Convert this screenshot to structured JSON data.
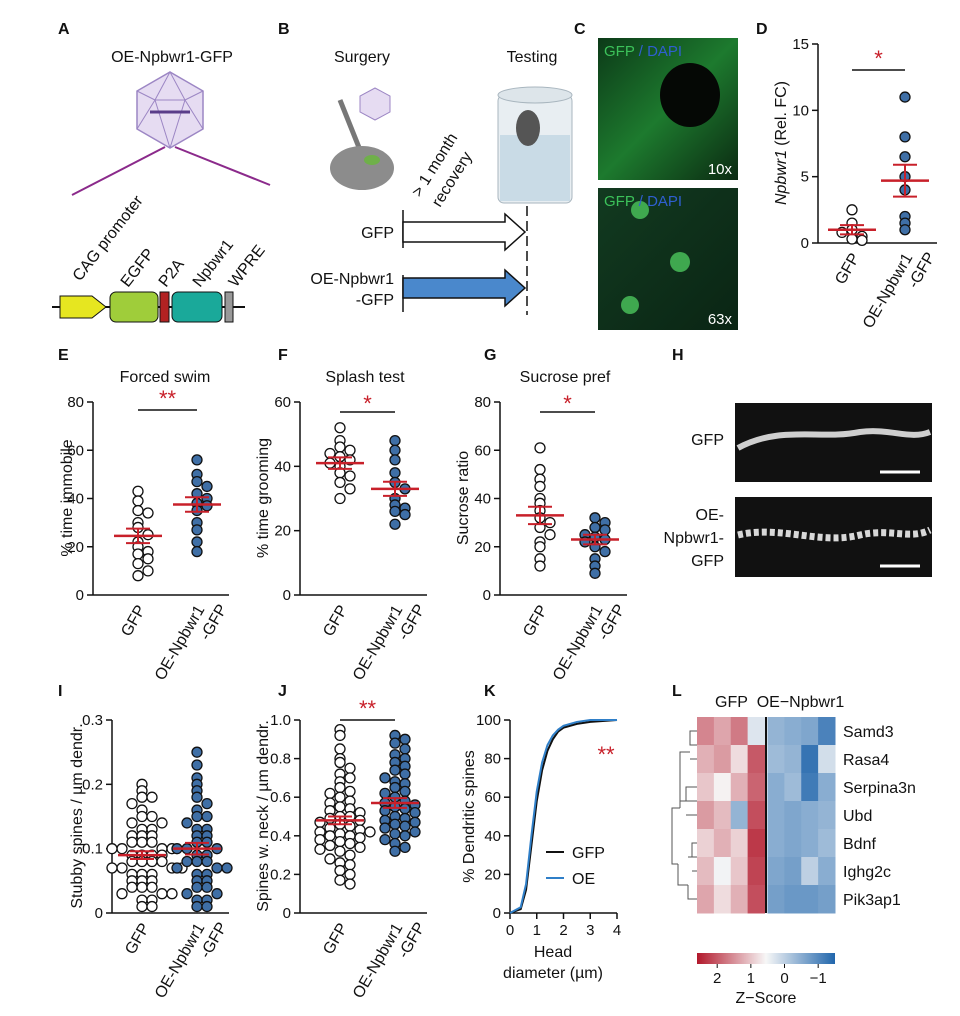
{
  "panel_letters": [
    "A",
    "B",
    "C",
    "D",
    "E",
    "F",
    "G",
    "H",
    "I",
    "J",
    "K",
    "L"
  ],
  "panel_a": {
    "title": "OE-Npbwr1-GFP",
    "elements": [
      "CAG promoter",
      "EGFP",
      "P2A",
      "Npbwr1",
      "WPRE"
    ]
  },
  "panel_b": {
    "surgery": "Surgery",
    "testing": "Testing",
    "recovery": [
      "> 1 month",
      "recovery"
    ],
    "group_gfp": "GFP",
    "group_oe": [
      "OE-Npbwr1",
      "-GFP"
    ]
  },
  "panel_c": {
    "stain": [
      "GFP",
      "/ DAPI"
    ],
    "magnifications": [
      "10x",
      "63x"
    ]
  },
  "panel_h": {
    "labels": [
      "GFP",
      [
        "OE-",
        "Npbwr1-",
        "GFP"
      ]
    ]
  },
  "chart_data": [
    {
      "type": "strip",
      "ylabel_gene": "Npbwr1",
      "ylabel": "(Rel. FC)",
      "categories": [
        "GFP",
        [
          "OE-Npbwr1",
          "-GFP"
        ]
      ],
      "mean_color": "#c8202a",
      "significance": "*",
      "ylim": [
        0,
        15
      ],
      "yticks": [
        0,
        5,
        10,
        15
      ],
      "groups": [
        {
          "color": "#ffffff",
          "values": [
            2.5,
            1.5,
            1.0,
            0.5,
            0.3,
            0.8,
            0.2
          ],
          "mean": 1.0,
          "sem": 0.35
        },
        {
          "color": "#3f6fa6",
          "values": [
            11,
            8,
            6.5,
            5,
            4,
            2,
            1.5,
            1.0
          ],
          "mean": 4.7,
          "sem": 1.2
        }
      ]
    },
    {
      "type": "strip",
      "title": "Forced swim",
      "ylabel": "% time immobile",
      "categories": [
        "GFP",
        [
          "OE-Npbwr1",
          "-GFP"
        ]
      ],
      "mean_color": "#c8202a",
      "significance": "**",
      "ylim": [
        0,
        80
      ],
      "yticks": [
        0,
        20,
        40,
        60,
        80
      ],
      "groups": [
        {
          "color": "#ffffff",
          "values": [
            43,
            39,
            35,
            34,
            30,
            28,
            25,
            22,
            20,
            18,
            17,
            15,
            13,
            10,
            8
          ],
          "mean": 24.5,
          "sem": 3
        },
        {
          "color": "#3f6fa6",
          "values": [
            56,
            50,
            47,
            45,
            42,
            40,
            38,
            37,
            35,
            30,
            27,
            22,
            18
          ],
          "mean": 37.5,
          "sem": 3
        }
      ]
    },
    {
      "type": "strip",
      "title": "Splash test",
      "ylabel": "% time grooming",
      "categories": [
        "GFP",
        [
          "OE-Npbwr1",
          "-GFP"
        ]
      ],
      "mean_color": "#c8202a",
      "significance": "*",
      "ylim": [
        0,
        60
      ],
      "yticks": [
        0,
        20,
        40,
        60
      ],
      "groups": [
        {
          "color": "#ffffff",
          "values": [
            52,
            48,
            46,
            45,
            44,
            43,
            42,
            41,
            40,
            38,
            37,
            35,
            33,
            30
          ],
          "mean": 41,
          "sem": 1.8
        },
        {
          "color": "#3f6fa6",
          "values": [
            48,
            45,
            42,
            38,
            35,
            33,
            30,
            28,
            27,
            26,
            25,
            22
          ],
          "mean": 33,
          "sem": 2.2
        }
      ]
    },
    {
      "type": "strip",
      "title": "Sucrose pref",
      "ylabel": "Sucrose ratio",
      "categories": [
        "GFP",
        [
          "OE-Npbwr1",
          "-GFP"
        ]
      ],
      "mean_color": "#c8202a",
      "significance": "*",
      "ylim": [
        0,
        80
      ],
      "yticks": [
        0,
        20,
        40,
        60,
        80
      ],
      "groups": [
        {
          "color": "#ffffff",
          "values": [
            61,
            52,
            48,
            45,
            40,
            38,
            35,
            32,
            30,
            28,
            25,
            22,
            20,
            15,
            12
          ],
          "mean": 33,
          "sem": 3.6
        },
        {
          "color": "#3f6fa6",
          "values": [
            32,
            30,
            28,
            27,
            25,
            24,
            23,
            22,
            20,
            18,
            15,
            12,
            9
          ],
          "mean": 23,
          "sem": 2
        }
      ]
    },
    {
      "type": "strip",
      "ylabel": "Stubby spines / µm dendr.",
      "categories": [
        "GFP",
        [
          "OE-Npbwr1",
          "-GFP"
        ]
      ],
      "mean_color": "#c8202a",
      "ylim": [
        0,
        0.3
      ],
      "yticks": [
        0,
        0.1,
        0.2,
        0.3
      ],
      "groups": [
        {
          "color": "#ffffff",
          "values": [
            0.2,
            0.19,
            0.18,
            0.18,
            0.17,
            0.16,
            0.15,
            0.15,
            0.14,
            0.14,
            0.13,
            0.13,
            0.12,
            0.12,
            0.12,
            0.11,
            0.11,
            0.11,
            0.1,
            0.1,
            0.1,
            0.1,
            0.09,
            0.09,
            0.09,
            0.09,
            0.08,
            0.08,
            0.08,
            0.08,
            0.07,
            0.07,
            0.07,
            0.07,
            0.06,
            0.06,
            0.06,
            0.05,
            0.05,
            0.05,
            0.04,
            0.04,
            0.04,
            0.03,
            0.03,
            0.03,
            0.02,
            0.02,
            0.01,
            0.01
          ],
          "mean": 0.09,
          "sem": 0.006
        },
        {
          "color": "#3f6fa6",
          "values": [
            0.25,
            0.23,
            0.21,
            0.2,
            0.19,
            0.18,
            0.17,
            0.16,
            0.15,
            0.15,
            0.14,
            0.13,
            0.13,
            0.12,
            0.12,
            0.11,
            0.11,
            0.1,
            0.1,
            0.1,
            0.09,
            0.09,
            0.08,
            0.08,
            0.08,
            0.07,
            0.07,
            0.07,
            0.06,
            0.06,
            0.05,
            0.05,
            0.04,
            0.04,
            0.03,
            0.03,
            0.02,
            0.02,
            0.01,
            0.01
          ],
          "mean": 0.1,
          "sem": 0.009
        }
      ]
    },
    {
      "type": "strip",
      "ylabel": "Spines w. neck / µm dendr.",
      "categories": [
        "GFP",
        [
          "OE-Npbwr1",
          "-GFP"
        ]
      ],
      "mean_color": "#c8202a",
      "significance": "**",
      "ylim": [
        0,
        1
      ],
      "yticks": [
        0,
        0.2,
        0.4,
        0.6,
        0.8,
        {
          "value": 1,
          "label": "1.0"
        }
      ],
      "groups": [
        {
          "color": "#ffffff",
          "values": [
            0.95,
            0.92,
            0.85,
            0.8,
            0.78,
            0.75,
            0.72,
            0.7,
            0.68,
            0.65,
            0.63,
            0.62,
            0.6,
            0.58,
            0.57,
            0.55,
            0.54,
            0.53,
            0.52,
            0.5,
            0.5,
            0.49,
            0.48,
            0.47,
            0.46,
            0.45,
            0.44,
            0.43,
            0.42,
            0.42,
            0.41,
            0.4,
            0.4,
            0.39,
            0.38,
            0.37,
            0.36,
            0.35,
            0.34,
            0.33,
            0.32,
            0.3,
            0.28,
            0.26,
            0.25,
            0.22,
            0.2,
            0.17,
            0.15
          ],
          "mean": 0.48,
          "sem": 0.02
        },
        {
          "color": "#3f6fa6",
          "values": [
            0.92,
            0.9,
            0.88,
            0.85,
            0.82,
            0.8,
            0.78,
            0.76,
            0.74,
            0.72,
            0.7,
            0.68,
            0.67,
            0.65,
            0.63,
            0.62,
            0.6,
            0.58,
            0.57,
            0.56,
            0.55,
            0.54,
            0.53,
            0.52,
            0.5,
            0.49,
            0.48,
            0.47,
            0.46,
            0.45,
            0.44,
            0.42,
            0.41,
            0.4,
            0.38,
            0.36,
            0.34,
            0.32
          ],
          "mean": 0.57,
          "sem": 0.025
        }
      ]
    },
    {
      "type": "line",
      "ylabel": "% Dendritic spines",
      "xlabel": [
        "Head",
        "diameter (µm)"
      ],
      "significance": "**",
      "xlim": [
        0,
        4
      ],
      "xticks": [
        0,
        1,
        2,
        3,
        4
      ],
      "ylim": [
        0,
        100
      ],
      "yticks": [
        0,
        20,
        40,
        60,
        80,
        100
      ],
      "x": [
        0,
        0.4,
        0.6,
        0.8,
        1.0,
        1.2,
        1.4,
        1.6,
        1.8,
        2.0,
        2.5,
        3.0,
        4.0
      ],
      "series": [
        {
          "name": "GFP",
          "color": "#111111",
          "values": [
            0,
            2,
            12,
            35,
            58,
            74,
            84,
            90,
            94,
            96,
            98,
            99,
            100
          ]
        },
        {
          "name": "OE",
          "color": "#2f7fc8",
          "values": [
            0,
            3,
            15,
            40,
            63,
            78,
            87,
            92,
            95,
            97,
            99,
            100,
            100
          ]
        }
      ]
    },
    {
      "type": "heatmap",
      "column_groups": [
        "GFP",
        "OE−Npbwr1"
      ],
      "rows": [
        "Samd3",
        "Rasa4",
        "Serpina3n",
        "Ubd",
        "Bdnf",
        "Ighg2c",
        "Pik3ap1"
      ],
      "values": [
        [
          1.6,
          1.3,
          1.7,
          0.3,
          -0.4,
          -0.5,
          -0.6,
          -1.1
        ],
        [
          1.2,
          1.4,
          0.8,
          2.0,
          -0.3,
          -0.4,
          -1.3,
          0.2
        ],
        [
          1.0,
          0.6,
          1.2,
          1.9,
          -0.5,
          -0.3,
          -1.2,
          -0.5
        ],
        [
          1.4,
          1.1,
          -0.4,
          2.1,
          -0.5,
          -0.6,
          -0.5,
          -0.4
        ],
        [
          0.9,
          1.2,
          0.9,
          2.3,
          -0.5,
          -0.6,
          -0.5,
          -0.3
        ],
        [
          1.1,
          0.5,
          1.0,
          2.2,
          -0.6,
          -0.7,
          0.0,
          -0.5
        ],
        [
          1.3,
          0.8,
          1.2,
          2.1,
          -0.7,
          -0.8,
          -0.8,
          -0.7
        ]
      ],
      "clim": [
        2.6,
        -1.5
      ],
      "cmap": [
        "#b2182b",
        "#f7f7f7",
        "#2166ac"
      ],
      "colorbar_ticks": [
        2,
        1,
        0,
        {
          "value": -1,
          "label": "−1"
        }
      ],
      "colorbar_label": "Z−Score"
    }
  ]
}
